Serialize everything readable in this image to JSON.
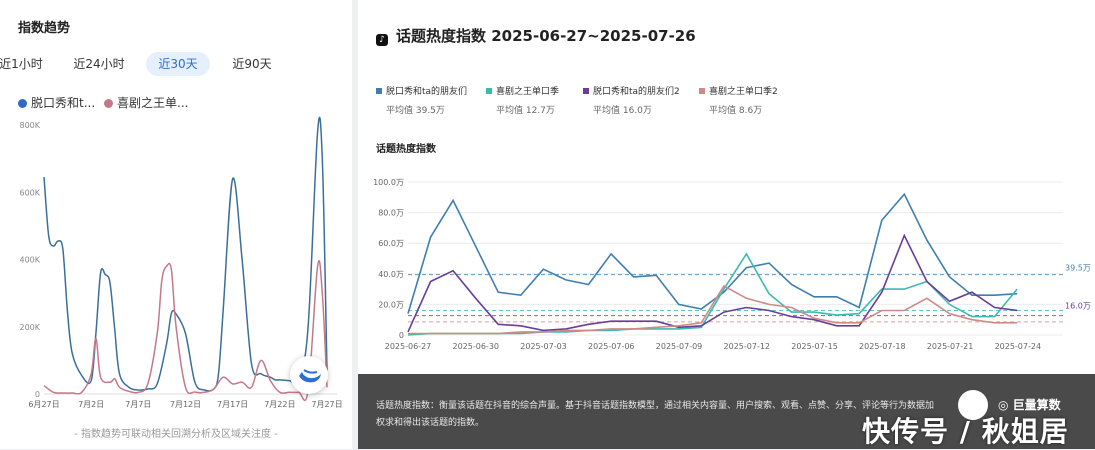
{
  "left_panel": {
    "title": "指数趋势",
    "tabs": [
      {
        "label": "近1小时",
        "active": false
      },
      {
        "label": "近24小时",
        "active": false
      },
      {
        "label": "近30天",
        "active": true
      },
      {
        "label": "近90天",
        "active": false
      }
    ],
    "legend": [
      {
        "label": "脱口秀和t...",
        "color": "#2c6cc4"
      },
      {
        "label": "喜剧之王单...",
        "color": "#c4788a"
      }
    ],
    "footer": "- 指数趋势可联动相关回溯分析及区域关注度 -"
  },
  "right_panel": {
    "title": "话题热度指数 2025-06-27~2025-07-26",
    "legend": [
      {
        "label": "脱口秀和ta的朋友们",
        "avg": "平均值 39.5万",
        "color": "#3e7fb0"
      },
      {
        "label": "喜剧之王单口季",
        "avg": "平均值 12.7万",
        "color": "#3cbab0"
      },
      {
        "label": "脱口秀和ta的朋友们2",
        "avg": "平均值 16.0万",
        "color": "#6a3d9a"
      },
      {
        "label": "喜剧之王单口季2",
        "avg": "平均值 8.6万",
        "color": "#d08a86"
      }
    ],
    "subtitle": "话题热度指数",
    "avg_labels": [
      "39.5万",
      "16.0万"
    ],
    "description": "话题热度指数：衡量该话题在抖音的综合声量。基于抖音话题指数模型，通过相关内容量、用户搜索、观看、点赞、分享、评论等行为数据加权求和得出该话题的指数。",
    "brand": "巨量算数",
    "watermark": "快传号 / 秋姐居"
  },
  "chart_data": [
    {
      "type": "line",
      "x_tick_labels": [
        "6月27日",
        "7月2日",
        "7月7日",
        "7月12日",
        "7月17日",
        "7月22日",
        "7月27日"
      ],
      "y_tick_labels": [
        "0",
        "200K",
        "400K",
        "600K",
        "800K"
      ],
      "ylim": [
        0,
        800000
      ],
      "xlim": [
        0,
        30
      ],
      "series": [
        {
          "name": "脱口秀和t...",
          "color": "#3a6f9a",
          "x": [
            0,
            0.5,
            1,
            1.5,
            2,
            2.5,
            3,
            4,
            5,
            5.5,
            6,
            6.5,
            7,
            7.5,
            8,
            9,
            10,
            11,
            12,
            13,
            13.5,
            14,
            15,
            16,
            17,
            18,
            18.5,
            19,
            20,
            21,
            22,
            23,
            24,
            24.5,
            25,
            26,
            27,
            28,
            29,
            29.5,
            30
          ],
          "y": [
            645000,
            470000,
            440000,
            455000,
            430000,
            240000,
            120000,
            55000,
            40000,
            180000,
            360000,
            355000,
            330000,
            190000,
            60000,
            20000,
            12000,
            15000,
            30000,
            150000,
            240000,
            238000,
            180000,
            35000,
            12000,
            15000,
            60000,
            250000,
            640000,
            400000,
            90000,
            60000,
            50000,
            42000,
            42000,
            40000,
            40000,
            200000,
            780000,
            700000,
            70000
          ]
        },
        {
          "name": "喜剧之王单...",
          "color": "#c4788a",
          "x": [
            0,
            1,
            2,
            3,
            4,
            5,
            5.5,
            6,
            7,
            7.5,
            8,
            9,
            10,
            11,
            12,
            12.5,
            13,
            13.5,
            14,
            15,
            16,
            17,
            18,
            19,
            20,
            21,
            22,
            23,
            24,
            25,
            26,
            27,
            28,
            29,
            29.5,
            30
          ],
          "y": [
            25000,
            5000,
            3000,
            3000,
            5000,
            60000,
            165000,
            50000,
            35000,
            45000,
            20000,
            8000,
            5000,
            30000,
            180000,
            340000,
            380000,
            370000,
            200000,
            20000,
            6000,
            5000,
            15000,
            50000,
            30000,
            35000,
            20000,
            100000,
            40000,
            5000,
            5000,
            5000,
            10000,
            380000,
            300000,
            20000
          ]
        }
      ]
    },
    {
      "type": "line",
      "x_tick_labels": [
        "2025-06-27",
        "2025-06-30",
        "2025-07-03",
        "2025-07-06",
        "2025-07-09",
        "2025-07-12",
        "2025-07-15",
        "2025-07-18",
        "2025-07-21",
        "2025-07-24"
      ],
      "y_tick_labels": [
        "0",
        "20.0万",
        "40.0万",
        "60.0万",
        "80.0万",
        "100.0万"
      ],
      "ylim": [
        0,
        100
      ],
      "xlim": [
        0,
        29
      ],
      "series": [
        {
          "name": "脱口秀和ta的朋友们",
          "color": "#3e7fb0",
          "y": [
            14,
            64,
            88,
            58,
            28,
            26,
            43,
            36,
            33,
            53,
            38,
            39,
            20,
            17,
            28,
            44,
            47,
            33,
            25,
            25,
            18,
            75,
            92,
            62,
            38,
            26,
            26,
            27
          ]
        },
        {
          "name": "喜剧之王单口季",
          "color": "#3cbab0",
          "y": [
            0,
            1,
            1,
            1,
            1,
            1,
            2,
            2,
            3,
            3,
            4,
            4,
            4,
            5,
            30,
            53,
            27,
            15,
            15,
            13,
            14,
            30,
            30,
            35,
            20,
            12,
            12,
            30
          ]
        },
        {
          "name": "脱口秀和ta的朋友们2",
          "color": "#6a3d9a",
          "y": [
            2,
            35,
            42,
            24,
            7,
            6,
            3,
            4,
            7,
            9,
            9,
            9,
            5,
            6,
            15,
            18,
            16,
            12,
            10,
            6,
            6,
            28,
            65,
            35,
            22,
            28,
            18,
            16
          ]
        },
        {
          "name": "喜剧之王单口季2",
          "color": "#d08a86",
          "y": [
            1,
            1,
            1,
            1,
            1,
            2,
            2,
            3,
            3,
            4,
            4,
            5,
            6,
            8,
            32,
            24,
            20,
            18,
            11,
            8,
            8,
            16,
            16,
            24,
            14,
            10,
            8,
            8
          ]
        }
      ]
    }
  ]
}
